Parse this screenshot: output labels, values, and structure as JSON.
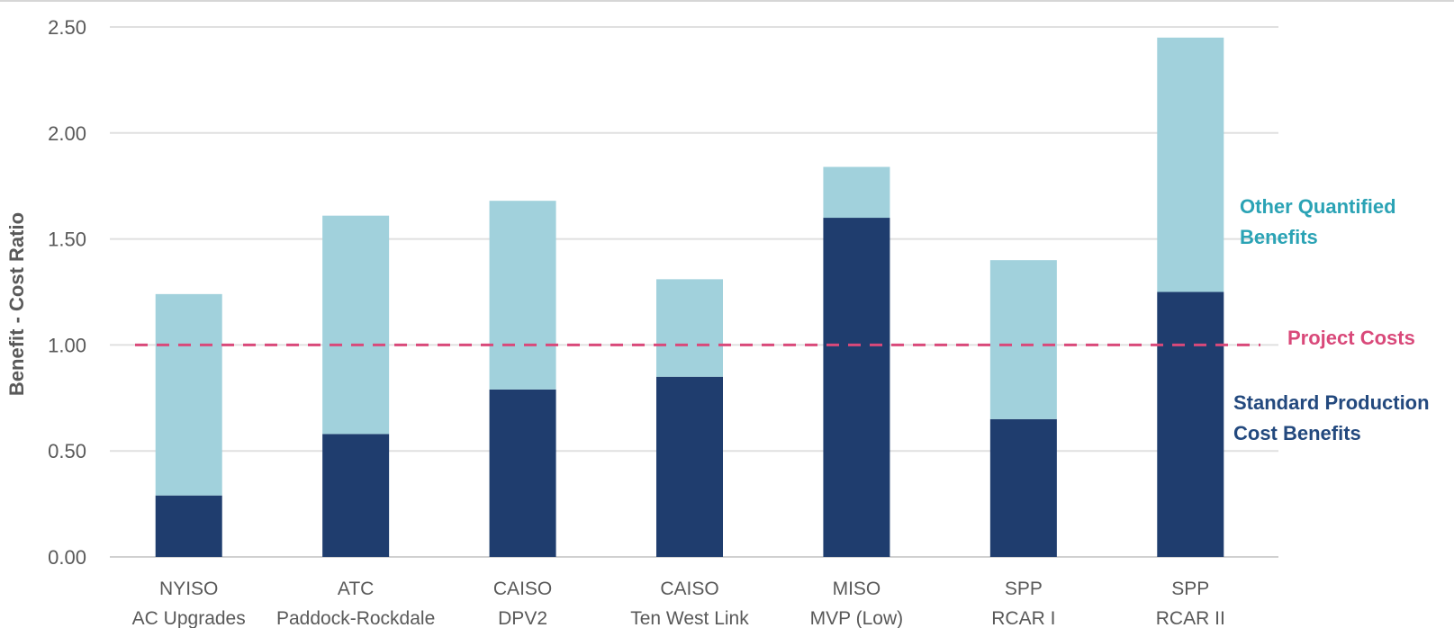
{
  "chart_data": {
    "type": "bar",
    "stacked": true,
    "title": "",
    "xlabel": "",
    "ylabel": "Benefit - Cost Ratio",
    "ylim": [
      0,
      2.5
    ],
    "yticks": [
      "0.00",
      "0.50",
      "1.00",
      "1.50",
      "2.00",
      "2.50"
    ],
    "grid": true,
    "categories": [
      [
        "NYISO",
        "AC Upgrades"
      ],
      [
        "ATC",
        "Paddock-Rockdale"
      ],
      [
        "CAISO",
        "DPV2"
      ],
      [
        "CAISO",
        "Ten West Link"
      ],
      [
        "MISO",
        "MVP (Low)"
      ],
      [
        "SPP",
        "RCAR I"
      ],
      [
        "SPP",
        "RCAR II"
      ]
    ],
    "series": [
      {
        "name": "Standard Production Cost Benefits",
        "color": "#1f3d6e",
        "values": [
          0.29,
          0.58,
          0.79,
          0.85,
          1.6,
          0.65,
          1.25
        ]
      },
      {
        "name": "Other Quantified Benefits",
        "color": "#a1d1dc",
        "values": [
          0.95,
          1.03,
          0.89,
          0.46,
          0.24,
          0.75,
          1.2
        ]
      }
    ],
    "reference_line": {
      "name": "Project Costs",
      "value": 1.0,
      "color": "#d9497a",
      "style": "dashed"
    },
    "legend": {
      "placement": "right",
      "entries": [
        {
          "lines": [
            "Other Quantified",
            "Benefits"
          ],
          "color": "#2ba3b5"
        },
        {
          "lines": [
            "Project Costs"
          ],
          "color": "#d9497a"
        },
        {
          "lines": [
            "Standard Production",
            "Cost Benefits"
          ],
          "color": "#23497e"
        }
      ]
    }
  }
}
